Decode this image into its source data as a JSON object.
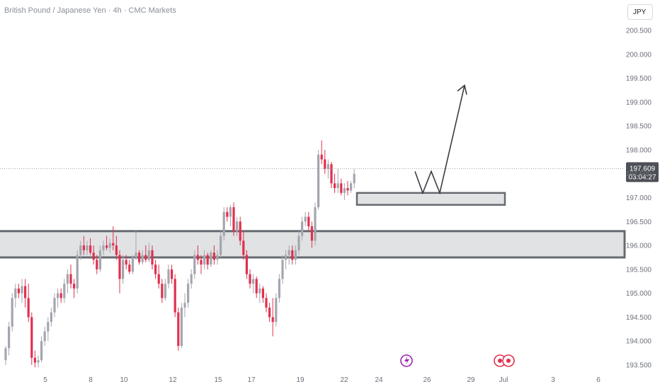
{
  "header": {
    "title": "British Pound / Japanese Yen · 4h · CMC Markets",
    "currency_button": "JPY"
  },
  "last_price": {
    "value": "197.609",
    "countdown": "03:04:27"
  },
  "colors": {
    "up": "#a3a6ad",
    "down": "#e0304e",
    "zone_fill": "#e1e2e4",
    "zone_border": "#666a70",
    "arrow": "#3a3d42",
    "price_tag": "#4d5157"
  },
  "chart_data": {
    "type": "candlestick",
    "symbol": "GBPJPY",
    "timeframe": "4h",
    "ylim": [
      193.4,
      200.75
    ],
    "y_ticks": [
      "193.500",
      "194.000",
      "194.500",
      "195.000",
      "195.500",
      "196.000",
      "196.500",
      "197.000",
      "197.500",
      "198.000",
      "198.500",
      "199.000",
      "199.500",
      "200.000",
      "200.500"
    ],
    "x_ticks": [
      "5",
      "8",
      "10",
      "12",
      "15",
      "17",
      "19",
      "22",
      "24",
      "26",
      "29",
      "Jul",
      "3",
      "6"
    ],
    "candles": [
      [
        193.6,
        193.9,
        193.5,
        193.85
      ],
      [
        193.85,
        194.4,
        193.7,
        194.3
      ],
      [
        194.3,
        195.0,
        194.2,
        194.9
      ],
      [
        194.9,
        195.2,
        194.7,
        195.1
      ],
      [
        195.1,
        195.2,
        194.9,
        195.0
      ],
      [
        195.0,
        195.3,
        194.8,
        195.15
      ],
      [
        195.15,
        195.3,
        194.7,
        194.9
      ],
      [
        194.9,
        195.2,
        194.4,
        194.5
      ],
      [
        194.5,
        194.6,
        193.5,
        193.65
      ],
      [
        193.65,
        193.8,
        193.45,
        193.55
      ],
      [
        193.55,
        193.7,
        193.45,
        193.6
      ],
      [
        193.6,
        194.1,
        193.55,
        194.0
      ],
      [
        194.0,
        194.3,
        193.9,
        194.2
      ],
      [
        194.2,
        194.5,
        194.0,
        194.4
      ],
      [
        194.4,
        194.7,
        194.3,
        194.6
      ],
      [
        194.6,
        195.0,
        194.5,
        194.9
      ],
      [
        194.9,
        195.1,
        194.7,
        195.0
      ],
      [
        195.0,
        195.1,
        194.8,
        194.9
      ],
      [
        194.9,
        195.3,
        194.8,
        195.2
      ],
      [
        195.2,
        195.5,
        195.0,
        195.4
      ],
      [
        195.4,
        195.6,
        195.1,
        195.2
      ],
      [
        195.2,
        195.3,
        194.9,
        195.1
      ],
      [
        195.1,
        195.9,
        195.0,
        195.8
      ],
      [
        195.8,
        196.1,
        195.7,
        196.0
      ],
      [
        196.0,
        196.2,
        195.8,
        195.9
      ],
      [
        195.9,
        196.1,
        195.8,
        196.0
      ],
      [
        196.0,
        196.15,
        195.8,
        195.85
      ],
      [
        195.85,
        196.0,
        195.6,
        195.7
      ],
      [
        195.7,
        195.8,
        195.4,
        195.5
      ],
      [
        195.5,
        196.0,
        195.45,
        195.9
      ],
      [
        195.9,
        196.1,
        195.8,
        196.0
      ],
      [
        196.0,
        196.2,
        195.9,
        195.95
      ],
      [
        195.95,
        196.15,
        195.85,
        196.05
      ],
      [
        196.05,
        196.4,
        195.9,
        196.0
      ],
      [
        196.0,
        196.2,
        195.7,
        195.8
      ],
      [
        195.8,
        195.9,
        195.0,
        195.3
      ],
      [
        195.3,
        195.8,
        195.2,
        195.7
      ],
      [
        195.7,
        195.8,
        195.5,
        195.6
      ],
      [
        195.6,
        195.7,
        195.4,
        195.45
      ],
      [
        195.45,
        195.8,
        195.4,
        195.75
      ],
      [
        195.75,
        196.3,
        195.7,
        195.85
      ],
      [
        195.85,
        195.9,
        195.6,
        195.65
      ],
      [
        195.65,
        195.9,
        195.6,
        195.8
      ],
      [
        195.8,
        196.0,
        195.65,
        195.7
      ],
      [
        195.7,
        196.05,
        195.65,
        195.9
      ],
      [
        195.9,
        196.0,
        195.5,
        195.6
      ],
      [
        195.6,
        195.7,
        195.3,
        195.4
      ],
      [
        195.4,
        195.6,
        195.1,
        195.2
      ],
      [
        195.2,
        195.3,
        194.8,
        194.9
      ],
      [
        194.9,
        195.3,
        194.85,
        195.2
      ],
      [
        195.2,
        195.6,
        195.1,
        195.5
      ],
      [
        195.5,
        195.6,
        195.2,
        195.3
      ],
      [
        195.3,
        195.4,
        194.5,
        194.6
      ],
      [
        194.6,
        194.7,
        193.8,
        193.9
      ],
      [
        193.9,
        194.8,
        193.85,
        194.7
      ],
      [
        194.7,
        195.0,
        194.5,
        194.8
      ],
      [
        194.8,
        195.3,
        194.7,
        195.2
      ],
      [
        195.2,
        195.5,
        195.1,
        195.4
      ],
      [
        195.4,
        195.9,
        195.3,
        195.8
      ],
      [
        195.8,
        196.0,
        195.6,
        195.7
      ],
      [
        195.7,
        195.8,
        195.4,
        195.6
      ],
      [
        195.6,
        195.9,
        195.5,
        195.8
      ],
      [
        195.8,
        195.85,
        195.5,
        195.6
      ],
      [
        195.6,
        195.9,
        195.55,
        195.85
      ],
      [
        195.85,
        196.0,
        195.6,
        195.7
      ],
      [
        195.7,
        195.9,
        195.6,
        195.8
      ],
      [
        195.8,
        196.3,
        195.75,
        196.2
      ],
      [
        196.2,
        196.8,
        196.1,
        196.7
      ],
      [
        196.7,
        196.8,
        196.5,
        196.6
      ],
      [
        196.6,
        196.85,
        196.4,
        196.8
      ],
      [
        196.8,
        196.9,
        196.2,
        196.3
      ],
      [
        196.3,
        196.6,
        196.2,
        196.5
      ],
      [
        196.5,
        196.6,
        196.0,
        196.1
      ],
      [
        196.1,
        196.3,
        195.7,
        195.8
      ],
      [
        195.8,
        195.9,
        195.3,
        195.4
      ],
      [
        195.4,
        195.5,
        195.1,
        195.2
      ],
      [
        195.2,
        195.4,
        195.0,
        195.3
      ],
      [
        195.3,
        195.35,
        194.9,
        195.0
      ],
      [
        195.0,
        195.2,
        194.8,
        195.1
      ],
      [
        195.1,
        195.15,
        194.8,
        194.9
      ],
      [
        194.9,
        195.0,
        194.6,
        194.7
      ],
      [
        194.7,
        194.8,
        194.4,
        194.5
      ],
      [
        194.5,
        194.9,
        194.1,
        194.4
      ],
      [
        194.4,
        195.0,
        194.3,
        194.9
      ],
      [
        194.9,
        195.4,
        194.8,
        195.3
      ],
      [
        195.3,
        195.8,
        195.2,
        195.7
      ],
      [
        195.7,
        195.9,
        195.5,
        195.8
      ],
      [
        195.8,
        196.0,
        195.6,
        195.9
      ],
      [
        195.9,
        196.0,
        195.6,
        195.7
      ],
      [
        195.7,
        196.0,
        195.6,
        195.9
      ],
      [
        195.9,
        196.3,
        195.8,
        196.2
      ],
      [
        196.2,
        196.6,
        196.1,
        196.5
      ],
      [
        196.5,
        196.7,
        196.4,
        196.6
      ],
      [
        196.6,
        196.7,
        196.3,
        196.4
      ],
      [
        196.4,
        196.5,
        195.95,
        196.1
      ],
      [
        196.1,
        196.9,
        196.0,
        196.8
      ],
      [
        196.8,
        198.0,
        196.75,
        197.9
      ],
      [
        197.9,
        198.2,
        197.7,
        197.8
      ],
      [
        197.8,
        198.0,
        197.5,
        197.6
      ],
      [
        197.6,
        197.8,
        197.4,
        197.7
      ],
      [
        197.7,
        197.75,
        197.2,
        197.3
      ],
      [
        197.3,
        197.5,
        197.1,
        197.2
      ],
      [
        197.2,
        197.6,
        197.1,
        197.3
      ],
      [
        197.3,
        197.4,
        197.05,
        197.1
      ],
      [
        197.1,
        197.3,
        196.95,
        197.2
      ],
      [
        197.2,
        197.35,
        197.05,
        197.15
      ],
      [
        197.15,
        197.35,
        197.1,
        197.3
      ],
      [
        197.3,
        197.6,
        197.2,
        197.5
      ]
    ],
    "zones": [
      {
        "name": "support-zone",
        "from": 195.75,
        "to": 196.3
      },
      {
        "name": "demand-zone",
        "from": 196.85,
        "to": 197.1
      }
    ],
    "projection": [
      [
        197.55,
        "start"
      ],
      [
        197.1,
        "dip-1"
      ],
      [
        197.55,
        "peak"
      ],
      [
        197.1,
        "dip-2"
      ],
      [
        199.35,
        "target"
      ]
    ],
    "last_price_line": 197.609
  }
}
